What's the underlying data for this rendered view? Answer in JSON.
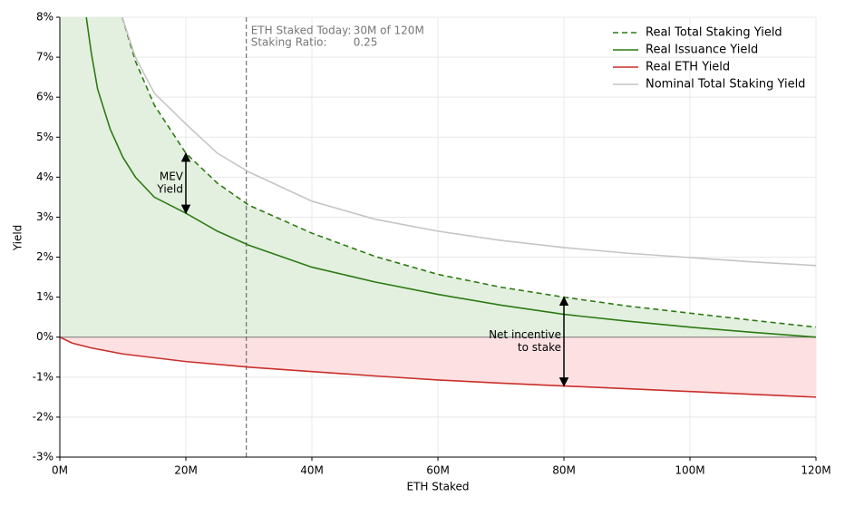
{
  "chart_data": {
    "type": "line",
    "xlabel": "ETH Staked",
    "ylabel": "Yield",
    "xlim": [
      0,
      120
    ],
    "xticks": [
      {
        "value": 0,
        "label": "0M"
      },
      {
        "value": 20,
        "label": "20M"
      },
      {
        "value": 40,
        "label": "40M"
      },
      {
        "value": 60,
        "label": "60M"
      },
      {
        "value": 80,
        "label": "80M"
      },
      {
        "value": 100,
        "label": "100M"
      },
      {
        "value": 120,
        "label": "120M"
      }
    ],
    "ylim": [
      -3,
      8
    ],
    "yticks": [
      {
        "value": -3,
        "label": "-3%"
      },
      {
        "value": -2,
        "label": "-2%"
      },
      {
        "value": -1,
        "label": "-1%"
      },
      {
        "value": 0,
        "label": "0%"
      },
      {
        "value": 1,
        "label": "1%"
      },
      {
        "value": 2,
        "label": "2%"
      },
      {
        "value": 3,
        "label": "3%"
      },
      {
        "value": 4,
        "label": "4%"
      },
      {
        "value": 5,
        "label": "5%"
      },
      {
        "value": 6,
        "label": "6%"
      },
      {
        "value": 7,
        "label": "7%"
      },
      {
        "value": 8,
        "label": "8%"
      }
    ],
    "grid": true,
    "legend": "upper right",
    "hline": 0,
    "vline": 29.6,
    "series": [
      {
        "name": "Real Total Staking Yield",
        "color": "#2d7a14",
        "style": "dashed",
        "fill": "#e3f0e0",
        "x": [
          9.9,
          12,
          15,
          20,
          25,
          30,
          40,
          50,
          60,
          70,
          80,
          90,
          100,
          110,
          120
        ],
        "values": [
          8,
          6.9,
          5.8,
          4.6,
          3.85,
          3.3,
          2.6,
          2.02,
          1.57,
          1.25,
          1.0,
          0.78,
          0.6,
          0.42,
          0.25
        ]
      },
      {
        "name": "Real Issuance Yield",
        "color": "#2d7a14",
        "style": "solid",
        "x": [
          4.2,
          5,
          6,
          8,
          10,
          12,
          15,
          20,
          25,
          30,
          40,
          50,
          60,
          70,
          80,
          90,
          100,
          110,
          120
        ],
        "values": [
          8,
          7.1,
          6.2,
          5.2,
          4.5,
          4.0,
          3.5,
          3.1,
          2.65,
          2.3,
          1.75,
          1.38,
          1.07,
          0.8,
          0.57,
          0.4,
          0.25,
          0.12,
          0
        ]
      },
      {
        "name": "Real ETH Yield",
        "color": "#c9302c",
        "style": "solid",
        "fill": "#fde0e2",
        "x": [
          0,
          2,
          5,
          10,
          20,
          30,
          40,
          50,
          60,
          70,
          80,
          90,
          100,
          110,
          120
        ],
        "values": [
          0,
          -0.15,
          -0.27,
          -0.42,
          -0.61,
          -0.75,
          -0.86,
          -0.97,
          -1.07,
          -1.15,
          -1.22,
          -1.29,
          -1.36,
          -1.43,
          -1.5
        ]
      },
      {
        "name": "Nominal Total Staking Yield",
        "color": "#c8c4c4",
        "style": "solid",
        "x": [
          9.9,
          12,
          15,
          20,
          25,
          30,
          40,
          50,
          60,
          70,
          80,
          90,
          100,
          110,
          120
        ],
        "values": [
          8,
          7.0,
          6.1,
          5.33,
          4.6,
          4.13,
          3.4,
          2.95,
          2.65,
          2.42,
          2.24,
          2.1,
          1.99,
          1.88,
          1.79
        ]
      }
    ],
    "info": [
      [
        "ETH Staked Today:",
        "30M of 120M"
      ],
      [
        "Staking Ratio:",
        "0.25"
      ]
    ],
    "arrows": [
      {
        "x": 20,
        "from": 3.1,
        "to": 4.6,
        "text": [
          "MEV",
          "Yield"
        ]
      },
      {
        "x": 80,
        "from": -1.22,
        "to": 1.0,
        "text": [
          "Net incentive",
          "to stake"
        ]
      }
    ]
  }
}
